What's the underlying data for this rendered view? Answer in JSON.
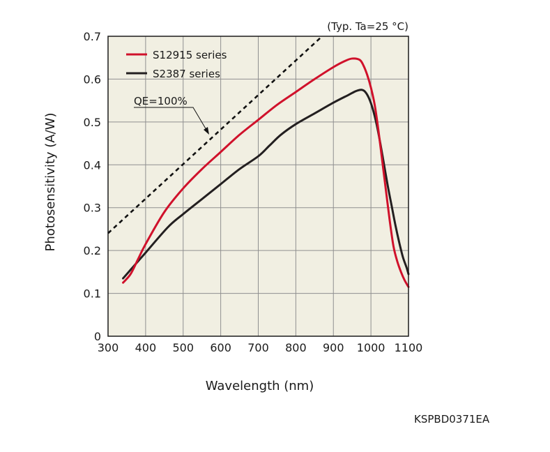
{
  "chart_data": {
    "type": "line",
    "title": "",
    "condition_note": "(Typ. Ta=25 °C)",
    "xlabel": "Wavelength (nm)",
    "ylabel": "Photosensitivity (A/W)",
    "xlim": [
      300,
      1100
    ],
    "ylim": [
      0,
      0.7
    ],
    "x_ticks": [
      300,
      400,
      500,
      600,
      700,
      800,
      900,
      1000,
      1100
    ],
    "y_ticks": [
      0,
      0.1,
      0.2,
      0.3,
      0.4,
      0.5,
      0.6,
      0.7
    ],
    "grid": true,
    "legend_position": "top-left",
    "series": [
      {
        "name": "S12915 series",
        "color": "#d0112b",
        "x": [
          340,
          360,
          380,
          400,
          450,
          500,
          550,
          600,
          650,
          700,
          750,
          800,
          850,
          900,
          930,
          950,
          970,
          980,
          990,
          1000,
          1010,
          1020,
          1030,
          1040,
          1050,
          1060,
          1070,
          1080,
          1090,
          1100
        ],
        "y": [
          0.125,
          0.145,
          0.18,
          0.215,
          0.29,
          0.345,
          0.39,
          0.43,
          0.47,
          0.505,
          0.54,
          0.57,
          0.6,
          0.628,
          0.642,
          0.648,
          0.645,
          0.632,
          0.61,
          0.58,
          0.54,
          0.48,
          0.41,
          0.34,
          0.27,
          0.21,
          0.175,
          0.15,
          0.13,
          0.115
        ]
      },
      {
        "name": "S2387 series",
        "color": "#231f20",
        "x": [
          340,
          360,
          380,
          400,
          460,
          500,
          550,
          600,
          650,
          700,
          730,
          760,
          800,
          850,
          900,
          940,
          960,
          975,
          985,
          995,
          1005,
          1015,
          1025,
          1035,
          1045,
          1055,
          1065,
          1075,
          1085,
          1095,
          1100
        ],
        "y": [
          0.135,
          0.155,
          0.175,
          0.195,
          0.255,
          0.285,
          0.32,
          0.355,
          0.39,
          0.42,
          0.445,
          0.47,
          0.495,
          0.52,
          0.545,
          0.563,
          0.572,
          0.575,
          0.57,
          0.555,
          0.53,
          0.495,
          0.45,
          0.4,
          0.35,
          0.305,
          0.26,
          0.22,
          0.185,
          0.16,
          0.145
        ]
      }
    ],
    "reference_line": {
      "label": "QE=100%",
      "x": [
        300,
        870
      ],
      "y": [
        0.2403,
        0.7
      ]
    }
  },
  "figure_code": "KSPBD0371EA"
}
